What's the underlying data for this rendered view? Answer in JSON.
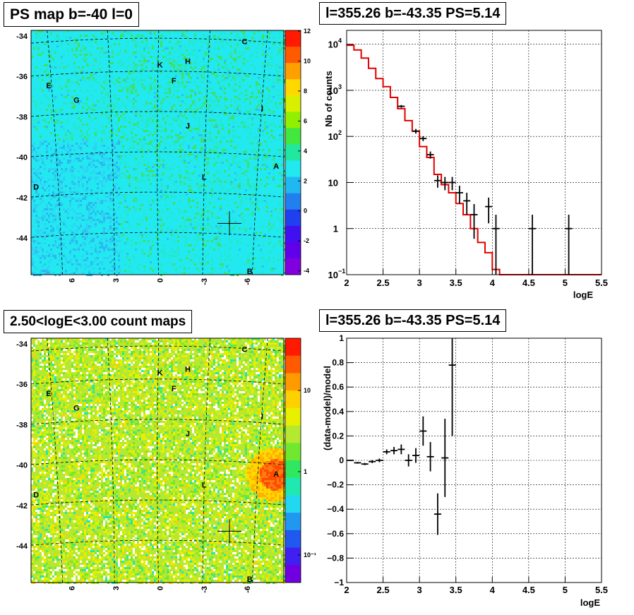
{
  "panels": {
    "ps_map_title": "PS map b=-40 l=0",
    "spectrum_title": "l=355.26 b=-43.35 PS=5.14",
    "count_map_title": "2.50<logE<3.00 count maps",
    "residual_title": "l=355.26 b=-43.35 PS=5.14"
  },
  "colors": {
    "ps_bg": "#22e8f0",
    "count_bg": "#b5e830",
    "model_line": "#e00000",
    "data": "#000000",
    "grid": "#000000"
  },
  "chart_data": [
    {
      "type": "heatmap",
      "name": "ps-map",
      "x_ticks": [
        "6",
        "3",
        "0",
        "-3",
        "-6"
      ],
      "y_ticks": [
        "-34",
        "-36",
        "-38",
        "-40",
        "-42",
        "-44"
      ],
      "colorbar_ticks": [
        "12",
        "10",
        "8",
        "6",
        "4",
        "2",
        "0",
        "-2",
        "-4"
      ],
      "zrange": [
        -5,
        12
      ],
      "source_labels": [
        "A",
        "B",
        "C",
        "D",
        "E",
        "F",
        "G",
        "H",
        "I",
        "J",
        "K",
        "L"
      ]
    },
    {
      "type": "line",
      "name": "spectrum",
      "xlabel": "logE",
      "ylabel": "Nb of counts",
      "xlim": [
        2,
        5.5
      ],
      "ylim": [
        0.1,
        20000
      ],
      "log_y": true,
      "x_ticks": [
        "2",
        "2.5",
        "3",
        "3.5",
        "4",
        "4.5",
        "5",
        "5.5"
      ],
      "model": {
        "edges": [
          2.0,
          2.1,
          2.2,
          2.3,
          2.4,
          2.5,
          2.6,
          2.7,
          2.8,
          2.9,
          3.0,
          3.1,
          3.2,
          3.3,
          3.4,
          3.5,
          3.6,
          3.7,
          3.8,
          3.9,
          4.0,
          4.1,
          5.5
        ],
        "values": [
          9500,
          7500,
          5000,
          3000,
          1800,
          1200,
          700,
          400,
          220,
          130,
          60,
          35,
          15,
          9,
          6,
          3.5,
          2,
          1,
          0.5,
          0.3,
          0.13,
          0.1
        ]
      },
      "data_points": [
        {
          "x": 2.75,
          "y": 450,
          "lo": 420,
          "hi": 480
        },
        {
          "x": 2.95,
          "y": 130,
          "lo": 115,
          "hi": 145
        },
        {
          "x": 3.05,
          "y": 90,
          "lo": 79,
          "hi": 101
        },
        {
          "x": 3.15,
          "y": 40,
          "lo": 33,
          "hi": 47
        },
        {
          "x": 3.25,
          "y": 11,
          "lo": 7.7,
          "hi": 14.3
        },
        {
          "x": 3.35,
          "y": 10,
          "lo": 6.8,
          "hi": 13.2
        },
        {
          "x": 3.45,
          "y": 10,
          "lo": 6.8,
          "hi": 13.2
        },
        {
          "x": 3.55,
          "y": 6,
          "lo": 3.5,
          "hi": 8.5
        },
        {
          "x": 3.65,
          "y": 4,
          "lo": 2,
          "hi": 6
        },
        {
          "x": 3.75,
          "y": 2,
          "lo": 0.6,
          "hi": 3.4
        },
        {
          "x": 3.95,
          "y": 3,
          "lo": 1.3,
          "hi": 4.7
        },
        {
          "x": 4.05,
          "y": 1,
          "lo": 0.1,
          "hi": 2
        },
        {
          "x": 4.55,
          "y": 1,
          "lo": 0.1,
          "hi": 2
        },
        {
          "x": 5.05,
          "y": 1,
          "lo": 0.1,
          "hi": 2
        }
      ]
    },
    {
      "type": "heatmap",
      "name": "count-map",
      "x_ticks": [
        "6",
        "3",
        "0",
        "-3",
        "-6"
      ],
      "y_ticks": [
        "-34",
        "-36",
        "-38",
        "-40",
        "-42",
        "-44"
      ],
      "colorbar_ticks": [
        "10",
        "1",
        "10⁻¹"
      ],
      "log_z": true,
      "source_labels": [
        "A",
        "B",
        "C",
        "D",
        "E",
        "F",
        "G",
        "H",
        "I",
        "J",
        "K",
        "L"
      ]
    },
    {
      "type": "scatter",
      "name": "residual",
      "xlabel": "logE",
      "ylabel": "(data-model)/model",
      "xlim": [
        2,
        5.5
      ],
      "ylim": [
        -1,
        1
      ],
      "x_ticks": [
        "2",
        "2.5",
        "3",
        "3.5",
        "4",
        "4.5",
        "5",
        "5.5"
      ],
      "y_ticks": [
        "1",
        "0.8",
        "0.6",
        "0.4",
        "0.2",
        "0",
        "−0.2",
        "−0.4",
        "−0.6",
        "−0.8",
        "−1"
      ],
      "points": [
        {
          "x": 2.05,
          "y": 0.0,
          "err": 0.005
        },
        {
          "x": 2.15,
          "y": -0.02,
          "err": 0.007
        },
        {
          "x": 2.25,
          "y": -0.03,
          "err": 0.009
        },
        {
          "x": 2.35,
          "y": -0.01,
          "err": 0.012
        },
        {
          "x": 2.45,
          "y": 0.0,
          "err": 0.015
        },
        {
          "x": 2.55,
          "y": 0.07,
          "err": 0.02
        },
        {
          "x": 2.65,
          "y": 0.08,
          "err": 0.03
        },
        {
          "x": 2.75,
          "y": 0.09,
          "err": 0.04
        },
        {
          "x": 2.85,
          "y": 0.0,
          "err": 0.05
        },
        {
          "x": 2.95,
          "y": 0.04,
          "err": 0.06
        },
        {
          "x": 3.05,
          "y": 0.24,
          "err": 0.12
        },
        {
          "x": 3.15,
          "y": 0.03,
          "err": 0.12
        },
        {
          "x": 3.25,
          "y": -0.44,
          "err": 0.17
        },
        {
          "x": 3.35,
          "y": 0.02,
          "err": 0.32
        },
        {
          "x": 3.45,
          "y": 0.78,
          "err": 0.58
        }
      ]
    }
  ]
}
